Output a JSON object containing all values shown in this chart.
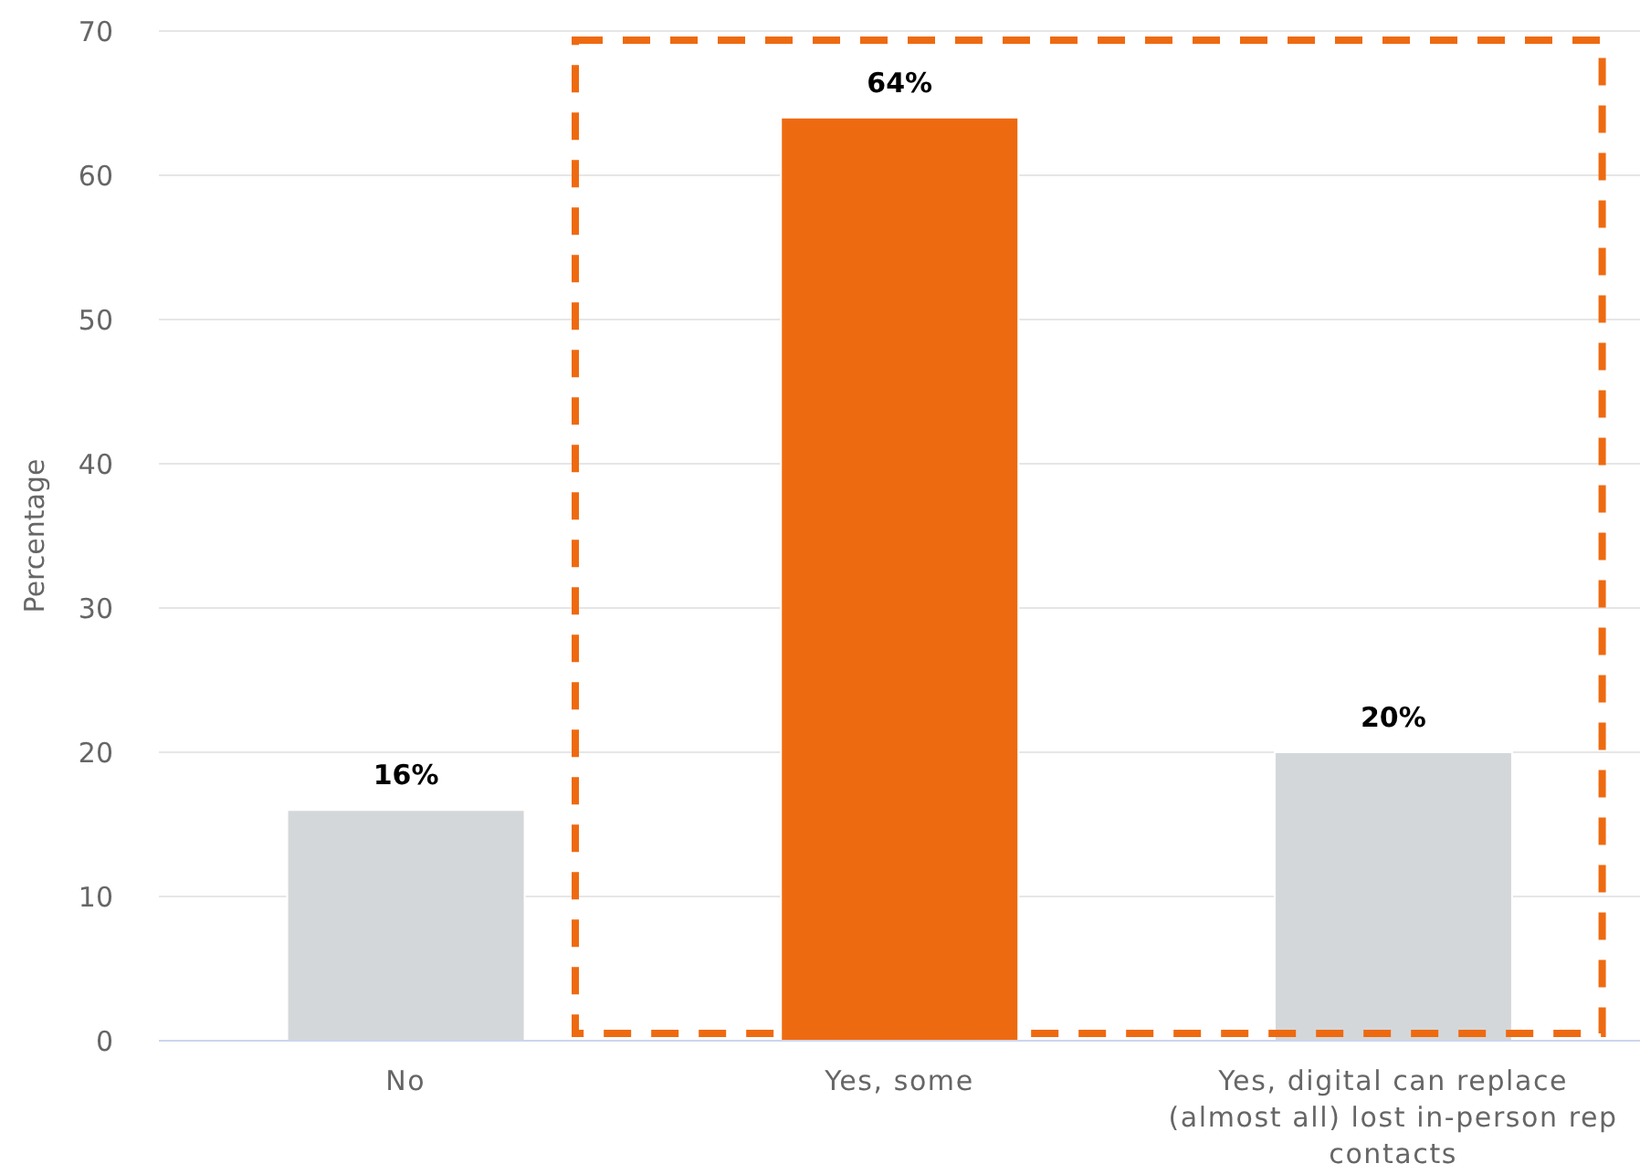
{
  "chart_data": {
    "type": "bar",
    "categories": [
      "No",
      "Yes, some",
      "Yes, digital can replace (almost all) lost in-person rep contacts"
    ],
    "values": [
      16,
      64,
      20
    ],
    "colors": [
      "#d4d7da",
      "#ee6a10",
      "#d4d7da"
    ],
    "value_labels": [
      "16%",
      "64%",
      "20%"
    ],
    "ylabel": "Percentage",
    "ylim": [
      0,
      70
    ],
    "yticks": [
      0,
      10,
      20,
      30,
      40,
      50,
      60,
      70
    ],
    "grid": "y"
  }
}
